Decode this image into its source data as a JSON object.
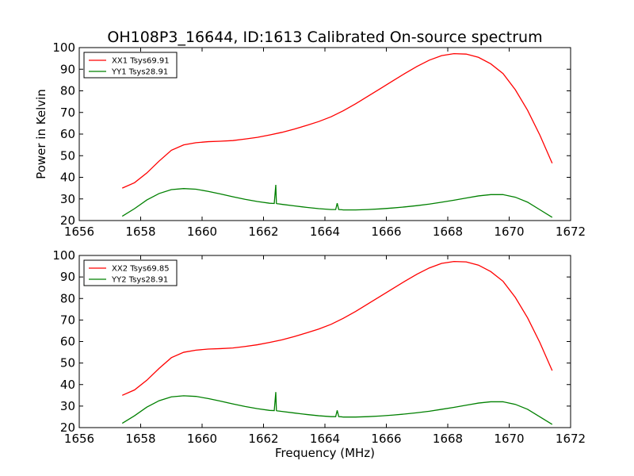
{
  "title": "OH108P3_16644, ID:1613 Calibrated On-source spectrum",
  "colors": {
    "xx": "#ff0000",
    "yy": "#008000"
  },
  "chart_data": [
    {
      "type": "line",
      "ylabel": "Power in Kelvin",
      "xlabel": "",
      "xlim": [
        1656,
        1672
      ],
      "ylim": [
        20,
        100
      ],
      "xticks": [
        1656,
        1658,
        1660,
        1662,
        1664,
        1666,
        1668,
        1670,
        1672
      ],
      "yticks": [
        20,
        30,
        40,
        50,
        60,
        70,
        80,
        90,
        100
      ],
      "grid": false,
      "legend": "top-left",
      "series": [
        {
          "name": "XX1 Tsys69.91",
          "color": "#ff0000",
          "x": [
            1657.4,
            1657.8,
            1658.2,
            1658.6,
            1659.0,
            1659.4,
            1659.8,
            1660.2,
            1660.6,
            1661.0,
            1661.4,
            1661.8,
            1662.2,
            1662.6,
            1663.0,
            1663.4,
            1663.8,
            1664.2,
            1664.6,
            1665.0,
            1665.4,
            1665.8,
            1666.2,
            1666.6,
            1667.0,
            1667.4,
            1667.8,
            1668.2,
            1668.6,
            1669.0,
            1669.4,
            1669.8,
            1670.2,
            1670.6,
            1671.0,
            1671.4
          ],
          "y": [
            35.0,
            37.5,
            42.0,
            47.5,
            52.5,
            55.0,
            56.0,
            56.5,
            56.7,
            57.0,
            57.7,
            58.5,
            59.6,
            60.8,
            62.3,
            64.0,
            65.8,
            68.0,
            70.8,
            74.0,
            77.5,
            81.0,
            84.5,
            88.0,
            91.3,
            94.2,
            96.3,
            97.2,
            97.0,
            95.5,
            92.5,
            88.0,
            80.5,
            71.0,
            59.5,
            46.5
          ]
        },
        {
          "name": "YY1 Tsys28.91",
          "color": "#008000",
          "x": [
            1657.4,
            1657.8,
            1658.2,
            1658.6,
            1659.0,
            1659.4,
            1659.8,
            1660.2,
            1660.6,
            1661.0,
            1661.4,
            1661.8,
            1662.2,
            1662.35,
            1662.4,
            1662.42,
            1662.44,
            1662.5,
            1662.6,
            1663.0,
            1663.4,
            1663.8,
            1664.2,
            1664.35,
            1664.4,
            1664.45,
            1664.55,
            1664.6,
            1665.0,
            1665.4,
            1665.8,
            1666.2,
            1666.6,
            1667.0,
            1667.4,
            1667.8,
            1668.2,
            1668.6,
            1669.0,
            1669.4,
            1669.8,
            1670.2,
            1670.6,
            1671.0,
            1671.4
          ],
          "y": [
            22.0,
            25.5,
            29.5,
            32.5,
            34.3,
            34.8,
            34.5,
            33.5,
            32.3,
            31.0,
            29.8,
            28.8,
            28.0,
            27.9,
            36.5,
            27.9,
            27.8,
            27.7,
            27.5,
            26.8,
            26.1,
            25.5,
            25.1,
            25.1,
            28.0,
            25.1,
            25.0,
            24.9,
            24.9,
            25.1,
            25.4,
            25.8,
            26.3,
            26.9,
            27.6,
            28.5,
            29.4,
            30.4,
            31.4,
            32.0,
            32.0,
            30.8,
            28.5,
            25.0,
            21.5
          ]
        }
      ]
    },
    {
      "type": "line",
      "ylabel": "",
      "xlabel": "Frequency (MHz)",
      "xlim": [
        1656,
        1672
      ],
      "ylim": [
        20,
        100
      ],
      "xticks": [
        1656,
        1658,
        1660,
        1662,
        1664,
        1666,
        1668,
        1670,
        1672
      ],
      "yticks": [
        20,
        30,
        40,
        50,
        60,
        70,
        80,
        90,
        100
      ],
      "grid": false,
      "legend": "top-left",
      "series": [
        {
          "name": "XX2 Tsys69.85",
          "color": "#ff0000",
          "x": [
            1657.4,
            1657.8,
            1658.2,
            1658.6,
            1659.0,
            1659.4,
            1659.8,
            1660.2,
            1660.6,
            1661.0,
            1661.4,
            1661.8,
            1662.2,
            1662.6,
            1663.0,
            1663.4,
            1663.8,
            1664.2,
            1664.6,
            1665.0,
            1665.4,
            1665.8,
            1666.2,
            1666.6,
            1667.0,
            1667.4,
            1667.8,
            1668.2,
            1668.6,
            1669.0,
            1669.4,
            1669.8,
            1670.2,
            1670.6,
            1671.0,
            1671.4
          ],
          "y": [
            35.0,
            37.5,
            42.0,
            47.5,
            52.5,
            55.0,
            56.0,
            56.5,
            56.7,
            57.0,
            57.7,
            58.5,
            59.6,
            60.8,
            62.3,
            64.0,
            65.8,
            68.0,
            70.8,
            74.0,
            77.5,
            81.0,
            84.5,
            88.0,
            91.3,
            94.2,
            96.3,
            97.2,
            97.0,
            95.5,
            92.5,
            88.0,
            80.5,
            71.0,
            59.5,
            46.5
          ]
        },
        {
          "name": "YY2 Tsys28.91",
          "color": "#008000",
          "x": [
            1657.4,
            1657.8,
            1658.2,
            1658.6,
            1659.0,
            1659.4,
            1659.8,
            1660.2,
            1660.6,
            1661.0,
            1661.4,
            1661.8,
            1662.2,
            1662.35,
            1662.4,
            1662.42,
            1662.44,
            1662.5,
            1662.6,
            1663.0,
            1663.4,
            1663.8,
            1664.2,
            1664.35,
            1664.4,
            1664.45,
            1664.55,
            1664.6,
            1665.0,
            1665.4,
            1665.8,
            1666.2,
            1666.6,
            1667.0,
            1667.4,
            1667.8,
            1668.2,
            1668.6,
            1669.0,
            1669.4,
            1669.8,
            1670.2,
            1670.6,
            1671.0,
            1671.4
          ],
          "y": [
            22.0,
            25.5,
            29.5,
            32.5,
            34.3,
            34.8,
            34.5,
            33.5,
            32.3,
            31.0,
            29.8,
            28.8,
            28.0,
            27.9,
            36.5,
            27.9,
            27.8,
            27.7,
            27.5,
            26.8,
            26.1,
            25.5,
            25.1,
            25.1,
            28.0,
            25.1,
            25.0,
            24.9,
            24.9,
            25.1,
            25.4,
            25.8,
            26.3,
            26.9,
            27.6,
            28.5,
            29.4,
            30.4,
            31.4,
            32.0,
            32.0,
            30.8,
            28.5,
            25.0,
            21.5
          ]
        }
      ]
    }
  ]
}
